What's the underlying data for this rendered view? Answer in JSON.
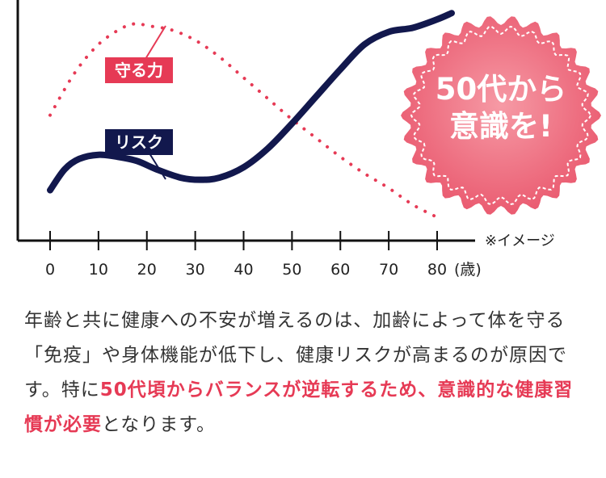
{
  "chart_data": {
    "type": "line",
    "x_ticks": [
      "0",
      "10",
      "20",
      "30",
      "40",
      "50",
      "60",
      "70",
      "80"
    ],
    "x_unit": "(歳)",
    "note": "※イメージ",
    "x_range": [
      0,
      80
    ],
    "series": [
      {
        "name": "守る力",
        "style": "dotted",
        "color": "#e63a55",
        "x": [
          0,
          5,
          10,
          15,
          18,
          20,
          25,
          30,
          35,
          40,
          45,
          50,
          55,
          60,
          65,
          70,
          75,
          80
        ],
        "y": [
          54,
          74,
          88,
          96,
          98,
          97,
          95,
          90,
          82,
          72,
          62,
          52,
          43,
          34,
          26,
          19,
          11,
          5
        ]
      },
      {
        "name": "リスク",
        "style": "solid",
        "color": "#12184d",
        "x": [
          0,
          3,
          6,
          10,
          14,
          18,
          22,
          27,
          31,
          35,
          40,
          45,
          50,
          55,
          60,
          65,
          70,
          75,
          80,
          83
        ],
        "y": [
          18,
          28,
          33,
          35,
          34,
          32,
          28,
          24,
          23,
          24,
          29,
          38,
          50,
          63,
          76,
          88,
          94,
          96,
          100,
          103
        ]
      }
    ],
    "grid": false,
    "legend": "inline labels"
  },
  "badge": {
    "line1": "50代から",
    "line2": "意識を!",
    "color": "#ef6f80"
  },
  "paragraph": {
    "part1": "年齢と共に健康への不安が増えるのは、加齢によって体を守る「免疫」や身体機能が低下し、健康リスクが高まるのが原因です。特に",
    "highlight1": "50代頃からバランスが逆転するため、意識的な健康習慣が必要",
    "part2": "となります。"
  }
}
